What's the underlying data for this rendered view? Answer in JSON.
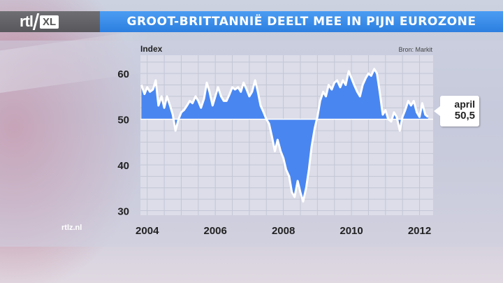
{
  "header": {
    "logo_text": "rtl",
    "logo_suffix": "XL",
    "title": "GROOT-BRITTANNIË DEELT MEE IN PIJN EUROZONE"
  },
  "footer": {
    "site": "rtlz.nl"
  },
  "callout": {
    "month": "april",
    "value": "50,5"
  },
  "colors": {
    "title_bar": "#2d7fe0",
    "area_fill": "#4a86f0",
    "line": "#ffffff",
    "plot_bg": "#dcdde9"
  },
  "chart_data": {
    "type": "area",
    "title": "GROOT-BRITTANNIË DEELT MEE IN PIJN EUROZONE",
    "ylabel": "Index",
    "source": "Bron: Markit",
    "baseline": 50,
    "ylim": [
      29,
      64
    ],
    "xlim": [
      2003.8,
      2012.4
    ],
    "yticks": [
      30,
      40,
      50,
      60
    ],
    "xticks": [
      2004,
      2006,
      2008,
      2010,
      2012
    ],
    "grid": true,
    "legend": "none",
    "series": [
      {
        "x": [
          2003.83,
          2003.92,
          2004.0,
          2004.08,
          2004.17,
          2004.25,
          2004.33,
          2004.42,
          2004.5,
          2004.58,
          2004.67,
          2004.75,
          2004.83,
          2004.92,
          2005.0,
          2005.08,
          2005.17,
          2005.25,
          2005.33,
          2005.42,
          2005.5,
          2005.58,
          2005.67,
          2005.75,
          2005.83,
          2005.92,
          2006.0,
          2006.08,
          2006.17,
          2006.25,
          2006.33,
          2006.42,
          2006.5,
          2006.58,
          2006.67,
          2006.75,
          2006.83,
          2006.92,
          2007.0,
          2007.08,
          2007.17,
          2007.25,
          2007.33,
          2007.42,
          2007.5,
          2007.58,
          2007.67,
          2007.75,
          2007.83,
          2007.92,
          2008.0,
          2008.08,
          2008.17,
          2008.25,
          2008.33,
          2008.42,
          2008.5,
          2008.58,
          2008.67,
          2008.75,
          2008.83,
          2008.92,
          2009.0,
          2009.08,
          2009.17,
          2009.25,
          2009.33,
          2009.42,
          2009.5,
          2009.58,
          2009.67,
          2009.75,
          2009.83,
          2009.92,
          2010.0,
          2010.08,
          2010.17,
          2010.25,
          2010.33,
          2010.42,
          2010.5,
          2010.58,
          2010.67,
          2010.75,
          2010.83,
          2010.92,
          2011.0,
          2011.08,
          2011.17,
          2011.25,
          2011.33,
          2011.42,
          2011.5,
          2011.58,
          2011.67,
          2011.75,
          2011.83,
          2011.92,
          2012.0,
          2012.08,
          2012.17,
          2012.25
        ],
        "y": [
          57.5,
          55.5,
          57,
          56,
          56.5,
          58.5,
          53,
          55,
          52.5,
          55,
          53,
          51,
          47.5,
          50,
          51.5,
          52,
          53,
          54,
          53.5,
          55,
          54,
          52.5,
          54.5,
          58,
          56,
          53,
          55,
          57,
          55,
          54,
          54,
          55.5,
          57,
          56.5,
          57,
          56,
          58,
          56.5,
          55,
          56,
          58.5,
          56,
          53,
          51.5,
          50,
          49,
          46,
          43,
          45.5,
          43,
          41.5,
          39,
          37.5,
          34,
          33,
          36.5,
          34,
          32,
          35,
          39,
          44,
          48,
          50.5,
          54,
          56,
          55,
          57.5,
          56.5,
          58,
          58.5,
          57,
          58.5,
          57.5,
          60.5,
          59,
          57.5,
          56,
          55,
          57.5,
          59,
          60,
          59.5,
          61,
          60,
          56,
          51,
          52,
          50,
          49.5,
          51.5,
          50.5,
          47.5,
          50.5,
          52,
          54,
          53,
          54,
          51.5,
          50.5,
          53.5,
          51,
          50.5
        ]
      }
    ]
  }
}
